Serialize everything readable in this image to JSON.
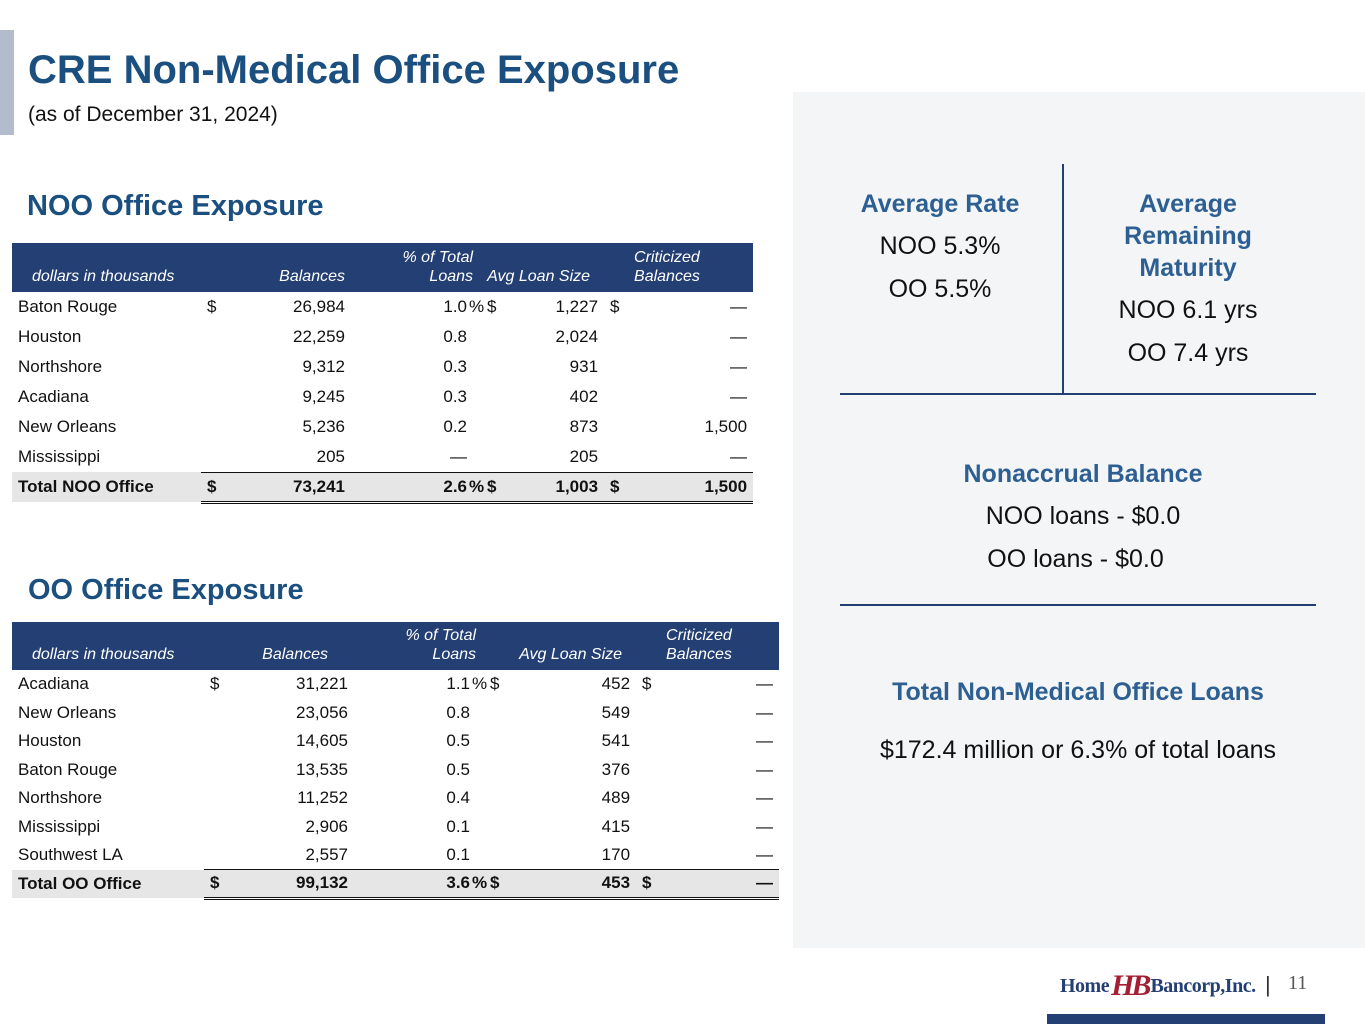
{
  "header": {
    "title": "CRE Non-Medical Office Exposure",
    "subtitle": "(as of December 31, 2024)"
  },
  "noo": {
    "section_title": "NOO Office Exposure",
    "columns": {
      "label": "dollars in thousands",
      "balances": "Balances",
      "pct": "% of Total Loans",
      "avg": "Avg Loan Size",
      "criticized_1": "Criticized",
      "criticized_2": "Balances"
    },
    "rows": [
      {
        "name": "Baton Rouge",
        "cur1": "$",
        "balances": "26,984",
        "pct": "1.0",
        "pct_sym": "%",
        "cur2": "$",
        "avg": "1,227",
        "cur3": "$",
        "criticized": "—"
      },
      {
        "name": "Houston",
        "cur1": "",
        "balances": "22,259",
        "pct": "0.8",
        "pct_sym": "",
        "cur2": "",
        "avg": "2,024",
        "cur3": "",
        "criticized": "—"
      },
      {
        "name": "Northshore",
        "cur1": "",
        "balances": "9,312",
        "pct": "0.3",
        "pct_sym": "",
        "cur2": "",
        "avg": "931",
        "cur3": "",
        "criticized": "—"
      },
      {
        "name": "Acadiana",
        "cur1": "",
        "balances": "9,245",
        "pct": "0.3",
        "pct_sym": "",
        "cur2": "",
        "avg": "402",
        "cur3": "",
        "criticized": "—"
      },
      {
        "name": "New Orleans",
        "cur1": "",
        "balances": "5,236",
        "pct": "0.2",
        "pct_sym": "",
        "cur2": "",
        "avg": "873",
        "cur3": "",
        "criticized": "1,500"
      },
      {
        "name": "Mississippi",
        "cur1": "",
        "balances": "205",
        "pct": "—",
        "pct_sym": "",
        "cur2": "",
        "avg": "205",
        "cur3": "",
        "criticized": "—"
      }
    ],
    "total": {
      "name": "Total NOO Office",
      "cur1": "$",
      "balances": "73,241",
      "pct": "2.6",
      "pct_sym": "%",
      "cur2": "$",
      "avg": "1,003",
      "cur3": "$",
      "criticized": "1,500"
    }
  },
  "oo": {
    "section_title": "OO Office Exposure",
    "columns": {
      "label": "dollars in thousands",
      "balances": "Balances",
      "pct": "% of Total Loans",
      "avg": "Avg Loan Size",
      "criticized_1": "Criticized",
      "criticized_2": "Balances"
    },
    "rows": [
      {
        "name": "Acadiana",
        "cur1": "$",
        "balances": "31,221",
        "pct": "1.1",
        "pct_sym": "%",
        "cur2": "$",
        "avg": "452",
        "cur3": "$",
        "criticized": "—"
      },
      {
        "name": "New Orleans",
        "cur1": "",
        "balances": "23,056",
        "pct": "0.8",
        "pct_sym": "",
        "cur2": "",
        "avg": "549",
        "cur3": "",
        "criticized": "—"
      },
      {
        "name": "Houston",
        "cur1": "",
        "balances": "14,605",
        "pct": "0.5",
        "pct_sym": "",
        "cur2": "",
        "avg": "541",
        "cur3": "",
        "criticized": "—"
      },
      {
        "name": "Baton Rouge",
        "cur1": "",
        "balances": "13,535",
        "pct": "0.5",
        "pct_sym": "",
        "cur2": "",
        "avg": "376",
        "cur3": "",
        "criticized": "—"
      },
      {
        "name": "Northshore",
        "cur1": "",
        "balances": "11,252",
        "pct": "0.4",
        "pct_sym": "",
        "cur2": "",
        "avg": "489",
        "cur3": "",
        "criticized": "—"
      },
      {
        "name": "Mississippi",
        "cur1": "",
        "balances": "2,906",
        "pct": "0.1",
        "pct_sym": "",
        "cur2": "",
        "avg": "415",
        "cur3": "",
        "criticized": "—"
      },
      {
        "name": "Southwest LA",
        "cur1": "",
        "balances": "2,557",
        "pct": "0.1",
        "pct_sym": "",
        "cur2": "",
        "avg": "170",
        "cur3": "",
        "criticized": "—"
      }
    ],
    "total": {
      "name": "Total OO Office",
      "cur1": "$",
      "balances": "99,132",
      "pct": "3.6",
      "pct_sym": "%",
      "cur2": "$",
      "avg": "453",
      "cur3": "$",
      "criticized": "—"
    }
  },
  "panel": {
    "avg_rate": {
      "heading": "Average Rate",
      "noo": "NOO 5.3%",
      "oo": "OO 5.5%"
    },
    "avg_maturity": {
      "heading_1": "Average",
      "heading_2": "Remaining",
      "heading_3": "Maturity",
      "noo": "NOO 6.1 yrs",
      "oo": "OO 7.4 yrs"
    },
    "nonaccrual": {
      "heading": "Nonaccrual Balance",
      "noo": "NOO loans - $0.0",
      "oo": "OO loans - $0.0"
    },
    "total_loans": {
      "heading": "Total Non-Medical Office Loans",
      "value": "$172.4 million or 6.3% of total loans"
    }
  },
  "footer": {
    "logo_home": "Home",
    "logo_mark": "HB",
    "logo_bancorp": "Bancorp,Inc.",
    "separator": "|",
    "page_number": "11"
  },
  "colors": {
    "navy": "#243f73",
    "title_blue": "#1b4f7f",
    "accent_red": "#a31f34"
  }
}
